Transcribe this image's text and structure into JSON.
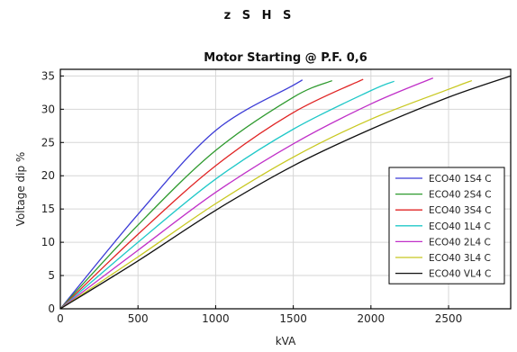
{
  "header": {
    "text": "z S H S"
  },
  "chart_data": {
    "type": "line",
    "title": "Motor Starting @ P.F. 0,6",
    "xlabel": "kVA",
    "ylabel": "Voltage dip %",
    "xlim": [
      0,
      2900
    ],
    "ylim": [
      0,
      36
    ],
    "x_ticks": [
      0,
      500,
      1000,
      1500,
      2000,
      2500
    ],
    "y_ticks": [
      0,
      5,
      10,
      15,
      20,
      25,
      30,
      35
    ],
    "grid": true,
    "legend_position": "lower-right",
    "series": [
      {
        "name": "ECO40 1S4 C",
        "color": "#3b3bd6",
        "x": [
          0,
          500,
          1000,
          1500,
          1550
        ],
        "y": [
          0,
          14.2,
          26.8,
          33.6,
          34.3
        ]
      },
      {
        "name": "ECO40 2S4 C",
        "color": "#2e9a2e",
        "x": [
          0,
          500,
          1000,
          1500,
          1750
        ],
        "y": [
          0,
          12.6,
          23.8,
          31.8,
          34.3
        ]
      },
      {
        "name": "ECO40 3S4 C",
        "color": "#e02424",
        "x": [
          0,
          500,
          1000,
          1500,
          1950
        ],
        "y": [
          0,
          11.2,
          21.5,
          29.5,
          34.5
        ]
      },
      {
        "name": "ECO40 1L4 C",
        "color": "#20c8c8",
        "x": [
          0,
          500,
          1000,
          1500,
          2000,
          2150
        ],
        "y": [
          0,
          10.0,
          19.5,
          27.0,
          32.8,
          34.2
        ]
      },
      {
        "name": "ECO40 2L4 C",
        "color": "#c030c8",
        "x": [
          0,
          500,
          1000,
          1500,
          2000,
          2400
        ],
        "y": [
          0,
          8.8,
          17.5,
          24.8,
          30.8,
          34.7
        ]
      },
      {
        "name": "ECO40 3L4 C",
        "color": "#c8c820",
        "x": [
          0,
          500,
          1000,
          1500,
          2000,
          2500,
          2650
        ],
        "y": [
          0,
          7.8,
          15.8,
          22.8,
          28.5,
          33.0,
          34.3
        ]
      },
      {
        "name": "ECO40 VL4 C",
        "color": "#111111",
        "x": [
          0,
          500,
          1000,
          1500,
          2000,
          2500,
          2900
        ],
        "y": [
          0,
          7.2,
          14.8,
          21.5,
          27.0,
          31.8,
          35.0
        ]
      }
    ]
  }
}
